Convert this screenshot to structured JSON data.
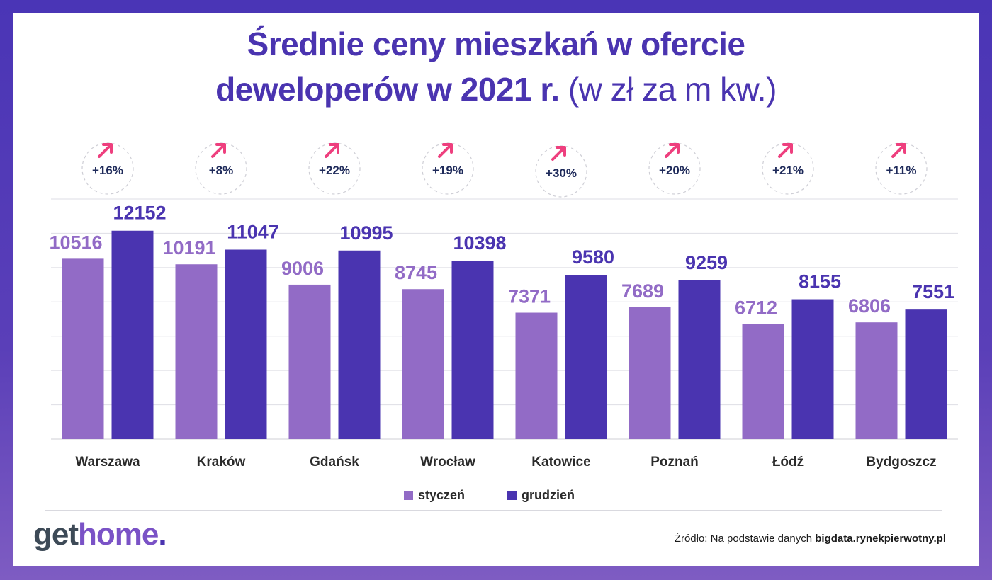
{
  "header": {
    "title_line1": "Średnie ceny mieszkań w ofercie",
    "title_line2_bold": "deweloperów w 2021 r.",
    "title_line2_normal": "(w zł za m kw.)"
  },
  "colors": {
    "january": "#926bc6",
    "december": "#4a34b0",
    "arrow": "#ee3f7e",
    "change_text": "#1e2a5a",
    "city_text": "#2b2b2b"
  },
  "chart_data": {
    "type": "bar",
    "title": "Średnie ceny mieszkań w ofercie deweloperów w 2021 r. (w zł za m kw.)",
    "categories": [
      "Warszawa",
      "Kraków",
      "Gdańsk",
      "Wrocław",
      "Katowice",
      "Poznań",
      "Łódź",
      "Bydgoszcz"
    ],
    "series": [
      {
        "name": "styczeń",
        "values": [
          10516,
          10191,
          9006,
          8745,
          7371,
          7689,
          6712,
          6806
        ]
      },
      {
        "name": "grudzień",
        "values": [
          12152,
          11047,
          10995,
          10398,
          9580,
          9259,
          8155,
          7551
        ]
      }
    ],
    "changes": [
      "+16%",
      "+8%",
      "+22%",
      "+19%",
      "+30%",
      "+20%",
      "+21%",
      "+11%"
    ],
    "ylim": [
      0,
      14000
    ],
    "grid": true,
    "xlabel": "",
    "ylabel": "",
    "legend_position": "bottom"
  },
  "footer": {
    "logo_part1": "get",
    "logo_part2": "home",
    "logo_dot": ".",
    "source_prefix": "Źródło: Na podstawie danych",
    "source_site": "bigdata.rynekpierwotny.pl"
  }
}
